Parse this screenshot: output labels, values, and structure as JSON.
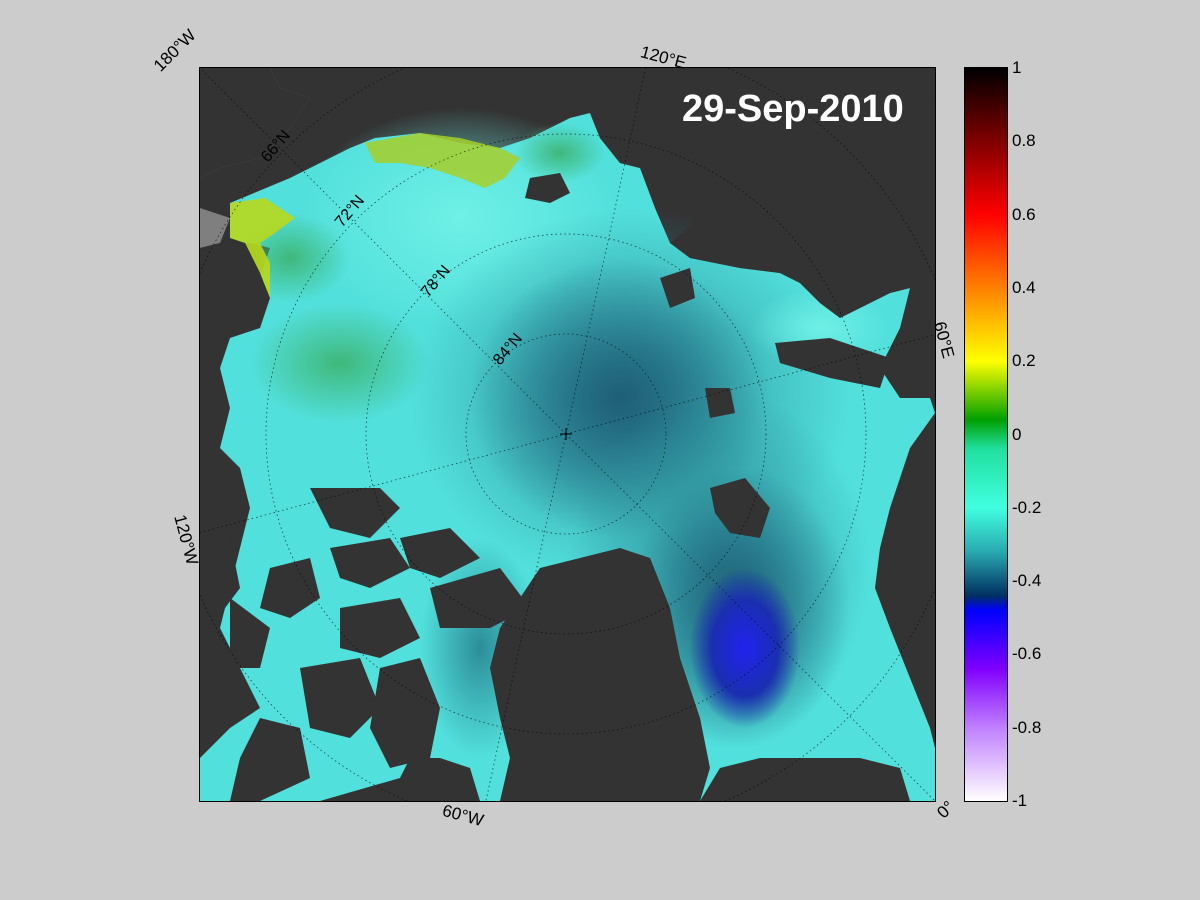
{
  "map": {
    "date": "29-Sep-2010",
    "latitude_labels": [
      "66°N",
      "72°N",
      "78°N",
      "84°N"
    ],
    "longitude_labels": {
      "lon_180w": "180°W",
      "lon_120e": "120°E",
      "lon_60e": "60°E",
      "lon_120w": "120°W",
      "lon_60w": "60°W",
      "lon_0": "0°"
    },
    "colors": {
      "land": "#333333",
      "no_data": "#7f7f7f",
      "background": "#cccccc"
    }
  },
  "colorbar": {
    "min": -1,
    "max": 1,
    "ticks": [
      "1",
      "0.8",
      "0.6",
      "0.4",
      "0.2",
      "0",
      "-0.2",
      "-0.4",
      "-0.6",
      "-0.8",
      "-1"
    ],
    "colors": [
      "#000000",
      "#7f0000",
      "#ff0000",
      "#ff8000",
      "#ffff00",
      "#00a000",
      "#40ffd0",
      "#2aa9b0",
      "#003060",
      "#0000ff",
      "#a040ff",
      "#ffffff"
    ]
  }
}
